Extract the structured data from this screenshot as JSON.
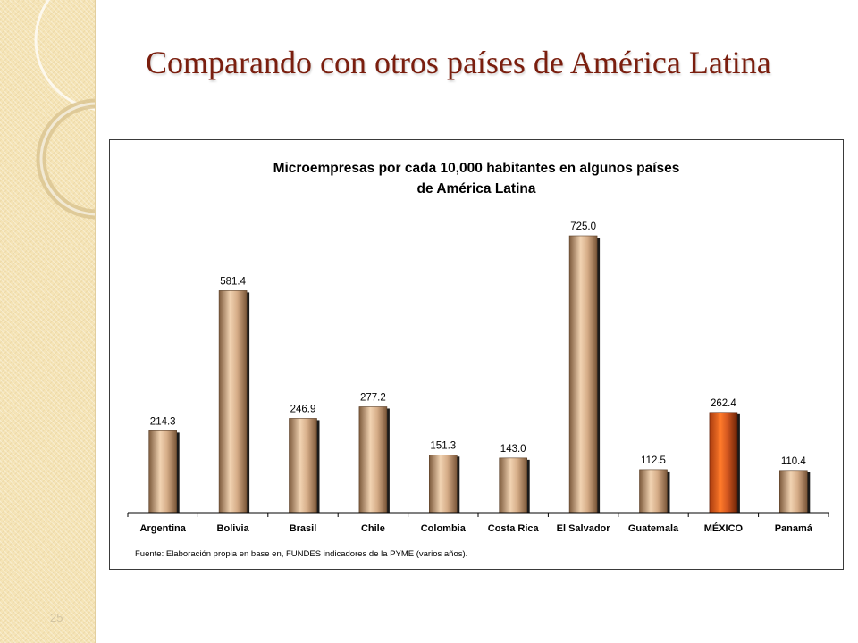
{
  "slide": {
    "title": "Comparando con otros países de América Latina",
    "slide_number": "25"
  },
  "colors": {
    "bar": "#d0a680",
    "bar_highlight": "#d2561f",
    "title": "#7a1e0e",
    "sidebar": "#f5e4b6"
  },
  "chart_data": {
    "type": "bar",
    "title_lines": [
      "Microempresas por cada 10,000 habitantes en algunos países",
      "de América Latina"
    ],
    "categories": [
      "Argentina",
      "Bolivia",
      "Brasil",
      "Chile",
      "Colombia",
      "Costa Rica",
      "El Salvador",
      "Guatemala",
      "MÉXICO",
      "Panamá"
    ],
    "values": [
      214.3,
      581.4,
      246.9,
      277.2,
      151.3,
      143.0,
      725.0,
      112.5,
      262.4,
      110.4
    ],
    "value_labels": [
      "214.3",
      "581.4",
      "246.9",
      "277.2",
      "151.3",
      "143.0",
      "725.0",
      "112.5",
      "262.4",
      "110.4"
    ],
    "highlight": "MÉXICO",
    "ylim": [
      0,
      725
    ],
    "xlabel": "",
    "ylabel": "",
    "grid": false,
    "legend": "none",
    "source_note": "Fuente: Elaboración propia en base en, FUNDES indicadores de la PYME (varios años)."
  }
}
